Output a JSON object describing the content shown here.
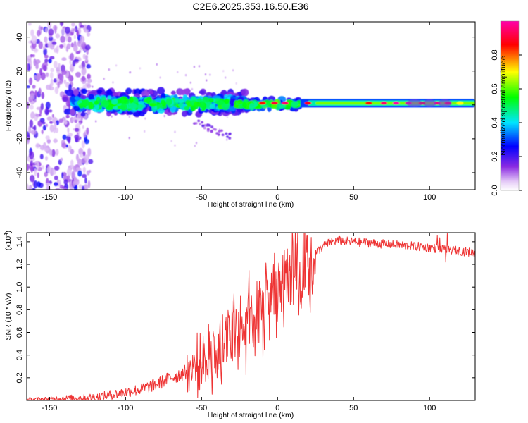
{
  "chart_data": [
    {
      "type": "heatmap",
      "title": "C2E6.2025.353.16.50.E36",
      "xlabel": "Height of straight line (km)",
      "ylabel": "Frequency (Hz)",
      "xlim": [
        -165,
        130
      ],
      "ylim": [
        -50,
        49
      ],
      "xticks": [
        -150,
        -100,
        -50,
        0,
        50,
        100
      ],
      "xtick_labels": [
        "-150",
        "-100",
        "-50",
        "0",
        "50",
        "100"
      ],
      "yticks": [
        -40,
        -20,
        0,
        20,
        40
      ],
      "ytick_labels": [
        "-40",
        "-20",
        "0",
        "20",
        "40"
      ],
      "colorbar": {
        "label": "Normalized spectral amplitude",
        "range": [
          0,
          1
        ],
        "ticks": [
          0,
          0.2,
          0.4,
          0.6,
          0.8
        ],
        "tick_labels": [
          "0.0",
          "0.2",
          "0.4",
          "0.6",
          "0.8"
        ],
        "colors": [
          "#ffffff",
          "#e6cdf7",
          "#8a2be2",
          "#0000ff",
          "#00e5ff",
          "#00ff00",
          "#ffff00",
          "#ff0000",
          "#ff00aa"
        ]
      },
      "description_points": [
        {
          "height_km": -160,
          "freq_hz": 0,
          "amp": 0.2
        },
        {
          "height_km": -120,
          "freq_hz": 2,
          "amp": 0.4
        },
        {
          "height_km": -80,
          "freq_hz": 1,
          "amp": 0.5
        },
        {
          "height_km": -30,
          "freq_hz": 2,
          "amp": 0.6
        },
        {
          "height_km": 0,
          "freq_hz": 1,
          "amp": 0.9
        },
        {
          "height_km": 50,
          "freq_hz": 1,
          "amp": 0.7
        },
        {
          "height_km": 80,
          "freq_hz": 1,
          "amp": 1.0
        },
        {
          "height_km": 110,
          "freq_hz": 1,
          "amp": 0.9
        },
        {
          "height_km": 125,
          "freq_hz": 1,
          "amp": 0.7
        }
      ]
    },
    {
      "type": "line",
      "xlabel": "Height of straight line (km)",
      "ylabel": "SNR (10 * v/v)",
      "y_multiplier": "(x10",
      "y_multiplier_exp": "4",
      "y_multiplier_close": ")",
      "xlim": [
        -165,
        130
      ],
      "ylim": [
        0,
        1.48
      ],
      "xticks": [
        -150,
        -100,
        -50,
        0,
        50,
        100
      ],
      "xtick_labels": [
        "-150",
        "-100",
        "-50",
        "0",
        "50",
        "100"
      ],
      "yticks": [
        0.2,
        0.4,
        0.6,
        0.8,
        1.0,
        1.2,
        1.4
      ],
      "ytick_labels": [
        "0.2",
        "0.4",
        "0.6",
        "0.8",
        "1.0",
        "1.2",
        "1.4"
      ],
      "color": "#ee3333",
      "series": [
        {
          "name": "SNR",
          "x": [
            -165,
            -150,
            -140,
            -130,
            -120,
            -110,
            -100,
            -90,
            -80,
            -70,
            -60,
            -55,
            -50,
            -45,
            -40,
            -35,
            -30,
            -25,
            -20,
            -15,
            -10,
            -5,
            0,
            5,
            10,
            15,
            20,
            25,
            30,
            35,
            40,
            50,
            60,
            70,
            80,
            90,
            100,
            110,
            120,
            130
          ],
          "y": [
            0.01,
            0.01,
            0.02,
            0.02,
            0.03,
            0.05,
            0.07,
            0.1,
            0.14,
            0.2,
            0.25,
            0.3,
            0.33,
            0.38,
            0.42,
            0.5,
            0.58,
            0.65,
            0.7,
            0.75,
            0.8,
            0.86,
            0.92,
            1.0,
            1.08,
            1.16,
            1.24,
            1.3,
            1.36,
            1.4,
            1.41,
            1.4,
            1.39,
            1.38,
            1.37,
            1.36,
            1.35,
            1.33,
            1.32,
            1.3
          ]
        }
      ]
    }
  ]
}
